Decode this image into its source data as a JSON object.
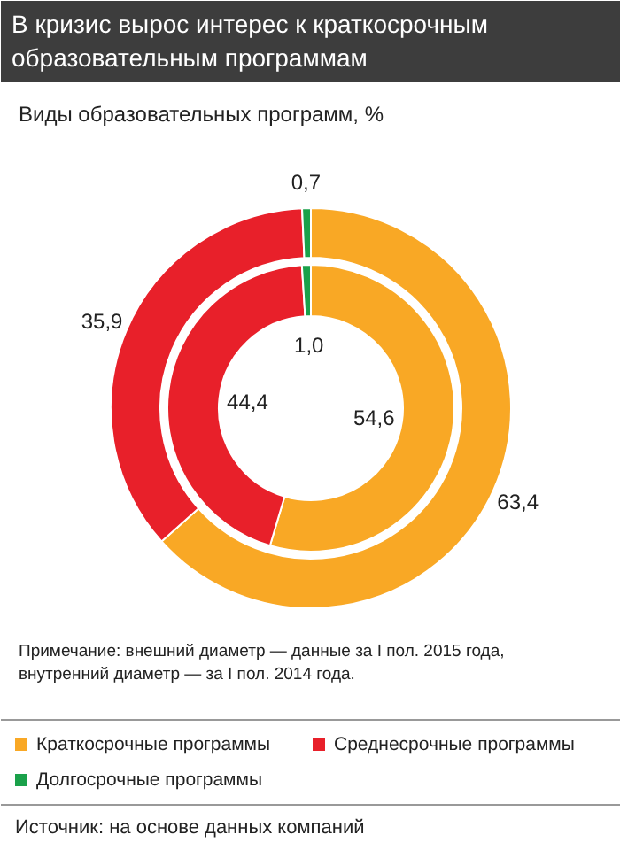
{
  "chart_data": {
    "type": "donut",
    "title": "В кризис вырос интерес к краткосрочным образовательным программам",
    "subtitle": "Виды образовательных программ, %",
    "categories": [
      "Краткосрочные программы",
      "Среднесрочные программы",
      "Долгосрочные программы"
    ],
    "series": [
      {
        "values": [
          63.4,
          35.9,
          0.7
        ],
        "colors": [
          "#f9a825",
          "#e8202a",
          "#1aa14a"
        ],
        "value_labels": [
          "63,4",
          "35,9",
          "0,7"
        ]
      },
      {
        "values": [
          54.6,
          44.4,
          1.0
        ],
        "colors": [
          "#f9a825",
          "#e8202a",
          "#1aa14a"
        ],
        "value_labels": [
          "54,6",
          "44,4",
          "1,0"
        ]
      }
    ],
    "legend": "bottom",
    "annotations": [
      "Примечание: внешний диаметр — данные за I пол. 2015 года,\nвнутренний диаметр — за I пол. 2014 года.",
      "Источник: на основе данных компаний"
    ]
  }
}
